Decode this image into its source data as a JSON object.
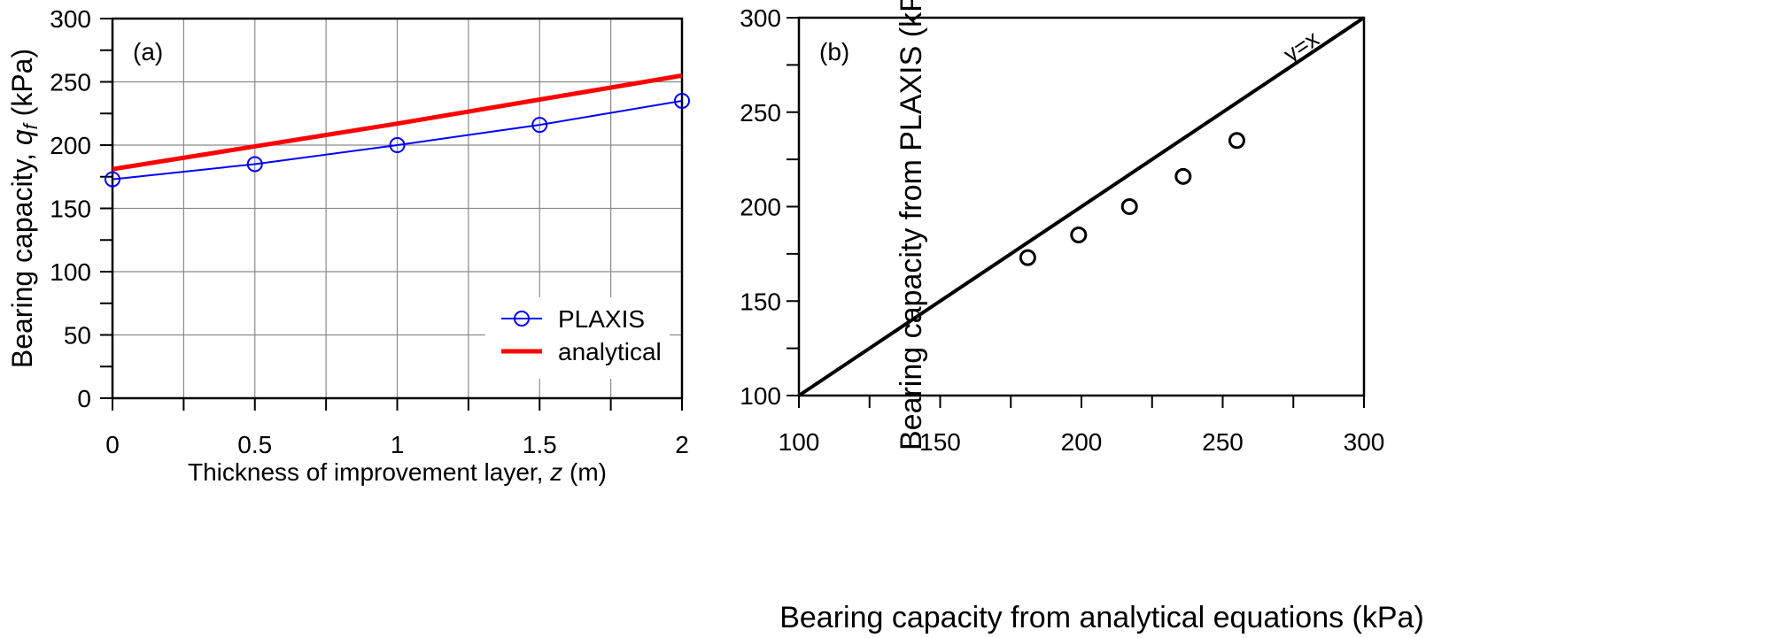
{
  "chart_data": [
    {
      "type": "line",
      "panel_label": "(a)",
      "xlabel_prefix": "Thickness of improvement layer, ",
      "xlabel_var": "z",
      "xlabel_suffix": " (m)",
      "ylabel_prefix": "Bearing capacity, ",
      "ylabel_var": "q",
      "ylabel_sub": "f",
      "ylabel_suffix": " (kPa)",
      "xlim": [
        0,
        2
      ],
      "ylim": [
        0,
        300
      ],
      "xticks": [
        0,
        0.5,
        1,
        1.5,
        2
      ],
      "xtick_labels": [
        "0",
        "0.5",
        "1",
        "1.5",
        "2"
      ],
      "yticks": [
        0,
        50,
        100,
        150,
        200,
        250,
        300
      ],
      "ytick_labels": [
        "0",
        "50",
        "100",
        "150",
        "200",
        "250",
        "300"
      ],
      "grid": true,
      "legend_position": "bottom-right",
      "series": [
        {
          "name": "PLAXIS",
          "color": "#0000ff",
          "marker": "circle",
          "x": [
            0,
            0.5,
            1,
            1.5,
            2
          ],
          "y": [
            173,
            185,
            200,
            216,
            235
          ]
        },
        {
          "name": "analytical",
          "color": "#ff0000",
          "marker": "none",
          "x": [
            0,
            0.5,
            1,
            1.5,
            2
          ],
          "y": [
            181,
            199,
            217,
            236,
            255
          ]
        }
      ]
    },
    {
      "type": "scatter",
      "panel_label": "(b)",
      "xlabel": "Bearing capacity from analytical equations (kPa)",
      "ylabel": "Bearing capacity from PLAXIS (kPa)",
      "xlim": [
        100,
        300
      ],
      "ylim": [
        100,
        300
      ],
      "xticks": [
        100,
        150,
        200,
        250,
        300
      ],
      "xtick_labels": [
        "100",
        "150",
        "200",
        "250",
        "300"
      ],
      "yticks": [
        100,
        150,
        200,
        250,
        300
      ],
      "ytick_labels": [
        "100",
        "150",
        "200",
        "250",
        "300"
      ],
      "grid": false,
      "reference_line": {
        "label": "y=x",
        "x": [
          100,
          300
        ],
        "y": [
          100,
          300
        ],
        "color": "#000000"
      },
      "points": [
        {
          "x": 181,
          "y": 173
        },
        {
          "x": 199,
          "y": 185
        },
        {
          "x": 217,
          "y": 200
        },
        {
          "x": 236,
          "y": 216
        },
        {
          "x": 255,
          "y": 235
        }
      ]
    }
  ]
}
